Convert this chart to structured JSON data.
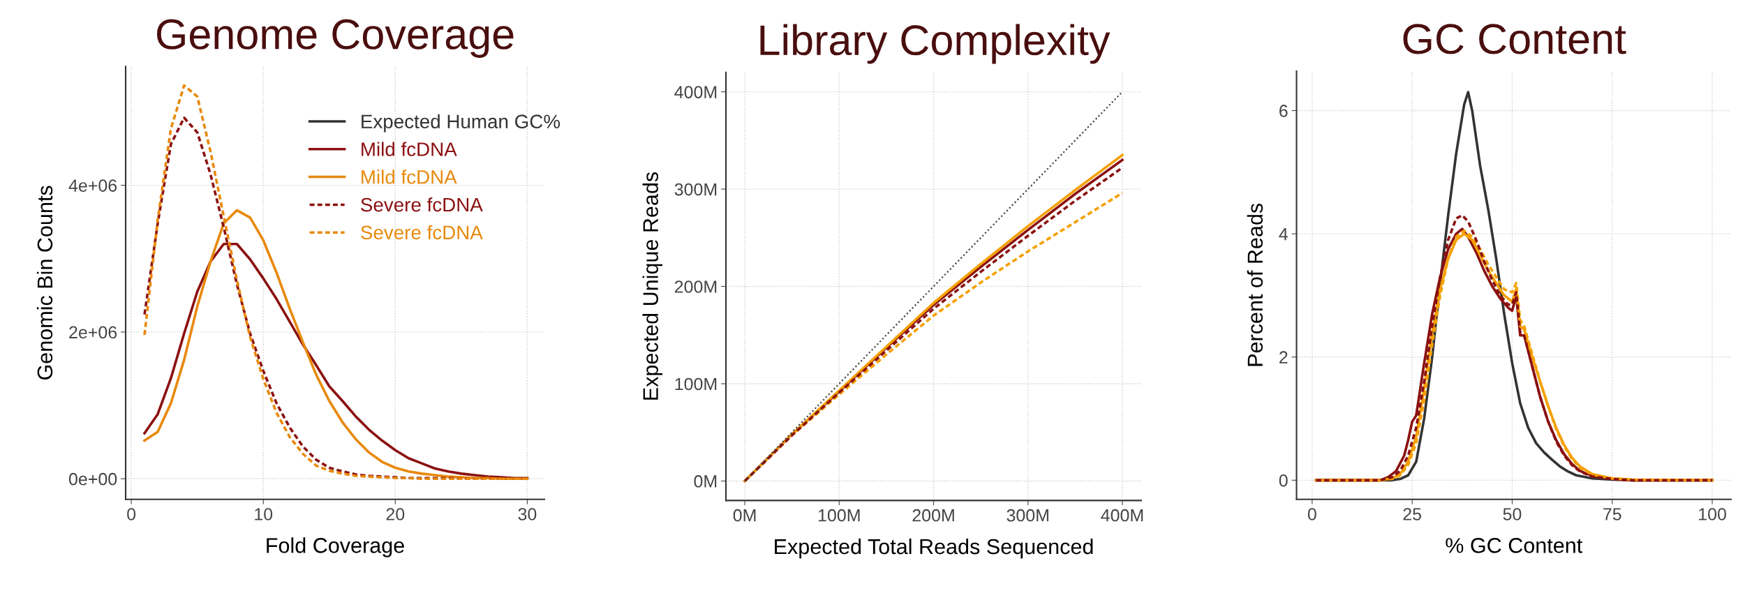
{
  "chart_data": [
    {
      "type": "line",
      "title": "Genome Coverage",
      "xlabel": "Fold Coverage",
      "ylabel": "Genomic Bin Counts",
      "xlim": [
        -0.43,
        31.3
      ],
      "xticks": [
        0,
        10,
        20,
        30
      ],
      "ylim": [
        -280000,
        5620000
      ],
      "yticks": [
        {
          "value": 0,
          "label": "0e+00"
        },
        {
          "value": 2000000,
          "label": "2e+06"
        },
        {
          "value": 4000000,
          "label": "4e+06"
        }
      ],
      "grid": true,
      "legend": "top right",
      "x": [
        1,
        2,
        3,
        4,
        5,
        6,
        7,
        8,
        9,
        10,
        11,
        12,
        13,
        14,
        15,
        16,
        17,
        18,
        19,
        20,
        21,
        22,
        23,
        24,
        25,
        26,
        27,
        28,
        29,
        30
      ],
      "series": [
        {
          "name": "Mild fcDNA",
          "color": "#8b1010",
          "line_style": "solid",
          "values": [
            620000,
            880000,
            1370000,
            1980000,
            2550000,
            2960000,
            3200000,
            3200000,
            2990000,
            2730000,
            2450000,
            2140000,
            1830000,
            1550000,
            1260000,
            1060000,
            850000,
            670000,
            520000,
            390000,
            280000,
            210000,
            140000,
            100000,
            70000,
            50000,
            30000,
            20000,
            10000,
            10000
          ]
        },
        {
          "name": "Mild fcDNA",
          "color": "#e8890c",
          "line_style": "solid",
          "values": [
            520000,
            640000,
            1030000,
            1620000,
            2350000,
            2960000,
            3480000,
            3660000,
            3560000,
            3250000,
            2810000,
            2320000,
            1860000,
            1420000,
            1060000,
            770000,
            540000,
            360000,
            230000,
            150000,
            100000,
            70000,
            50000,
            30000,
            20000,
            10000,
            10000,
            0,
            0,
            0
          ]
        },
        {
          "name": "Severe fcDNA",
          "color": "#8b1010",
          "line_style": "dashed",
          "values": [
            2240000,
            3480000,
            4560000,
            4920000,
            4720000,
            4150000,
            3430000,
            2650000,
            1980000,
            1470000,
            1030000,
            700000,
            440000,
            260000,
            150000,
            100000,
            60000,
            40000,
            30000,
            20000,
            10000,
            10000,
            10000,
            10000,
            0,
            0,
            0,
            0,
            0,
            0
          ]
        },
        {
          "name": "Severe fcDNA",
          "color": "#e8890c",
          "line_style": "dashed",
          "values": [
            1960000,
            3530000,
            4770000,
            5360000,
            5210000,
            4460000,
            3580000,
            2710000,
            1930000,
            1360000,
            900000,
            570000,
            340000,
            180000,
            110000,
            70000,
            40000,
            30000,
            20000,
            10000,
            10000,
            0,
            0,
            0,
            0,
            0,
            0,
            0,
            0,
            0
          ]
        }
      ]
    },
    {
      "type": "line",
      "title": "Library Complexity",
      "xlabel": "Expected Total Reads Sequenced",
      "ylabel": "Expected Unique Reads",
      "xlim": [
        -20,
        420
      ],
      "xticks": [
        {
          "value": 0,
          "label": "0M"
        },
        {
          "value": 100,
          "label": "100M"
        },
        {
          "value": 200,
          "label": "200M"
        },
        {
          "value": 300,
          "label": "300M"
        },
        {
          "value": 400,
          "label": "400M"
        }
      ],
      "ylim": [
        -20,
        420
      ],
      "yticks": [
        {
          "value": 0,
          "label": "0M"
        },
        {
          "value": 100,
          "label": "100M"
        },
        {
          "value": 200,
          "label": "200M"
        },
        {
          "value": 300,
          "label": "300M"
        },
        {
          "value": 400,
          "label": "400M"
        }
      ],
      "grid": true,
      "x": [
        0,
        50,
        100,
        150,
        200,
        250,
        300,
        350,
        400
      ],
      "series": [
        {
          "color": "#444444",
          "line_style": "dotted",
          "x": [
            0,
            400
          ],
          "values": [
            0,
            400
          ]
        },
        {
          "color": "#8b1010",
          "line_style": "solid",
          "values": [
            0,
            48,
            92,
            137,
            181,
            220,
            258,
            295,
            330
          ]
        },
        {
          "color": "#f5a000",
          "line_style": "solid",
          "values": [
            0,
            48,
            93,
            138,
            183,
            223,
            262,
            299,
            335
          ]
        },
        {
          "color": "#8b1010",
          "line_style": "dashed",
          "values": [
            0,
            47,
            91,
            134,
            177,
            215,
            252,
            288,
            322
          ]
        },
        {
          "color": "#f5a000",
          "line_style": "dashed",
          "values": [
            0,
            47,
            89,
            130,
            170,
            204,
            236,
            266,
            296
          ]
        }
      ]
    },
    {
      "type": "line",
      "title": "GC Content",
      "xlabel": "% GC Content",
      "ylabel": "Percent of Reads",
      "xlim": [
        -3.9,
        104.7
      ],
      "xticks": [
        0,
        25,
        50,
        75,
        100
      ],
      "ylim": [
        -0.31,
        6.64
      ],
      "yticks": [
        0,
        2,
        4,
        6
      ],
      "grid": true,
      "series": [
        {
          "name": "Expected Human GC%",
          "color": "#333333",
          "line_style": "solid",
          "x": [
            1,
            17,
            20,
            22,
            24,
            26,
            28,
            30,
            32,
            34,
            36,
            38,
            39,
            40,
            42,
            44,
            46,
            48,
            50,
            52,
            54,
            56,
            58,
            60,
            62,
            64,
            66,
            70,
            75,
            80,
            100
          ],
          "values": [
            0,
            0,
            0,
            0.02,
            0.08,
            0.3,
            1.0,
            2.0,
            3.2,
            4.3,
            5.3,
            6.1,
            6.3,
            6.0,
            5.1,
            4.4,
            3.6,
            2.7,
            1.9,
            1.25,
            0.85,
            0.6,
            0.45,
            0.33,
            0.22,
            0.14,
            0.08,
            0.03,
            0.01,
            0,
            0
          ]
        },
        {
          "color": "#8b1010",
          "line_style": "solid",
          "x": [
            1,
            17,
            19,
            21,
            23,
            24,
            25,
            26,
            28,
            30,
            32,
            34,
            36,
            37.5,
            39,
            41,
            43,
            45,
            47,
            49,
            50,
            51,
            52,
            53,
            55,
            57,
            59,
            61,
            63,
            65,
            67,
            70,
            75,
            80,
            100
          ],
          "values": [
            0,
            0,
            0.05,
            0.15,
            0.4,
            0.65,
            0.95,
            1.05,
            1.9,
            2.7,
            3.3,
            3.75,
            4.0,
            4.08,
            3.95,
            3.7,
            3.4,
            3.15,
            2.95,
            2.8,
            2.75,
            3.0,
            2.35,
            2.35,
            1.85,
            1.35,
            0.95,
            0.65,
            0.42,
            0.26,
            0.15,
            0.07,
            0.02,
            0,
            0
          ]
        },
        {
          "color": "#f5a000",
          "line_style": "solid",
          "x": [
            1,
            17,
            20,
            22,
            24,
            26,
            28,
            30,
            32,
            34,
            36,
            38,
            40,
            42,
            44,
            46,
            48,
            50,
            51,
            52,
            53,
            55,
            57,
            59,
            61,
            63,
            65,
            67,
            70,
            75,
            80,
            100
          ],
          "values": [
            0,
            0,
            0.03,
            0.1,
            0.3,
            0.7,
            1.5,
            2.4,
            3.1,
            3.6,
            3.9,
            4.0,
            3.9,
            3.65,
            3.4,
            3.2,
            3.0,
            2.9,
            3.1,
            2.5,
            2.45,
            2.0,
            1.6,
            1.2,
            0.85,
            0.57,
            0.36,
            0.22,
            0.1,
            0.03,
            0.01,
            0
          ]
        },
        {
          "color": "#8b1010",
          "line_style": "dashed",
          "x": [
            1,
            17,
            20,
            22,
            24,
            26,
            28,
            30,
            32,
            34,
            36,
            37.5,
            39,
            41,
            43,
            45,
            47,
            49,
            50,
            51,
            52,
            53,
            55,
            57,
            59,
            61,
            63,
            65,
            67,
            70,
            75,
            80,
            100
          ],
          "values": [
            0,
            0,
            0.05,
            0.15,
            0.4,
            0.85,
            1.6,
            2.5,
            3.3,
            3.9,
            4.25,
            4.3,
            4.2,
            3.9,
            3.55,
            3.25,
            3.0,
            2.85,
            2.85,
            3.05,
            2.4,
            2.35,
            1.85,
            1.35,
            0.95,
            0.63,
            0.4,
            0.24,
            0.14,
            0.06,
            0.02,
            0,
            0
          ]
        },
        {
          "color": "#f5a000",
          "line_style": "dashed",
          "x": [
            1,
            17,
            20,
            22,
            24,
            26,
            28,
            30,
            32,
            34,
            36,
            38,
            40,
            42,
            44,
            46,
            48,
            50,
            51,
            52,
            53,
            55,
            57,
            59,
            61,
            63,
            65,
            67,
            70,
            75,
            80,
            100
          ],
          "values": [
            0,
            0,
            0.02,
            0.08,
            0.25,
            0.6,
            1.3,
            2.2,
            3.0,
            3.6,
            3.95,
            4.05,
            3.95,
            3.75,
            3.5,
            3.3,
            3.1,
            3.05,
            3.2,
            2.6,
            2.5,
            2.05,
            1.6,
            1.2,
            0.83,
            0.55,
            0.34,
            0.2,
            0.09,
            0.03,
            0.01,
            0
          ]
        }
      ]
    }
  ]
}
